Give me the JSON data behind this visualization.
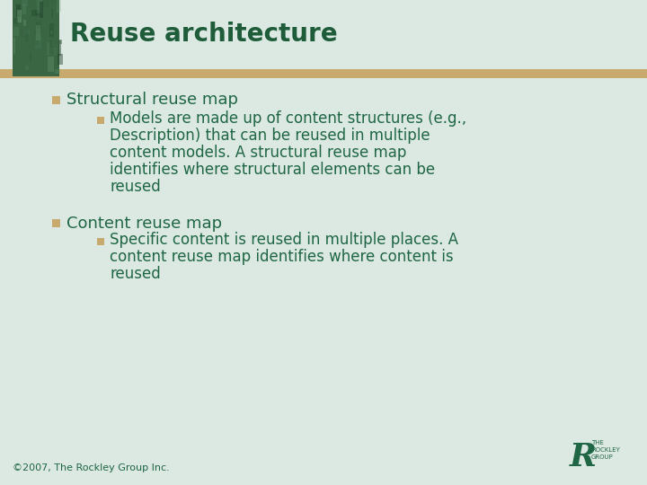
{
  "bg_color": "#dce8e2",
  "title": "Reuse architecture",
  "title_color": "#1e5c3a",
  "title_fontsize": 20,
  "header_bar_color": "#c8a96e",
  "marble_color_base": "#3a6644",
  "bullet_color": "#c8a96e",
  "text_color": "#1e6644",
  "bullet1_text": "Structural reuse map",
  "bullet_fontsize": 13,
  "sub1_lines": [
    "Models are made up of content structures (e.g.,",
    "Description) that can be reused in multiple",
    "content models. A structural reuse map",
    "identifies where structural elements can be",
    "reused"
  ],
  "sub_fontsize": 12,
  "bullet2_text": "Content reuse map",
  "sub2_lines": [
    "Specific content is reused in multiple places. A",
    "content reuse map identifies where content is",
    "reused"
  ],
  "footer_text": "©2007, The Rockley Group Inc.",
  "footer_fontsize": 8,
  "footer_color": "#1e6644"
}
